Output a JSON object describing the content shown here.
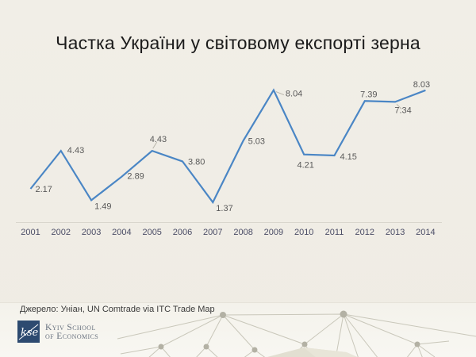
{
  "title": "Частка України у світовому експорті зерна",
  "source": "Джерело: Уніан, UN Comtrade via ITC Trade Map",
  "logo": {
    "monogram": "kse",
    "name_line1": "Kyiv School",
    "name_line2": "of Economics"
  },
  "chart_data": {
    "type": "line",
    "title": "Частка України у світовому експорті зерна",
    "x": [
      "2001",
      "2002",
      "2003",
      "2004",
      "2005",
      "2006",
      "2007",
      "2008",
      "2009",
      "2010",
      "2011",
      "2012",
      "2013",
      "2014"
    ],
    "values": [
      2.17,
      4.43,
      1.49,
      2.89,
      4.43,
      3.8,
      1.37,
      5.03,
      8.04,
      4.21,
      4.15,
      7.39,
      7.34,
      8.03
    ],
    "ylim": [
      0,
      9
    ],
    "grid": false,
    "legend": "none",
    "line_color": "#4a86c5",
    "label_color": "#595959",
    "axis_color": "#d9d6cd",
    "tick_color": "#4b4d66",
    "leader_color": "#b8b5ab"
  }
}
